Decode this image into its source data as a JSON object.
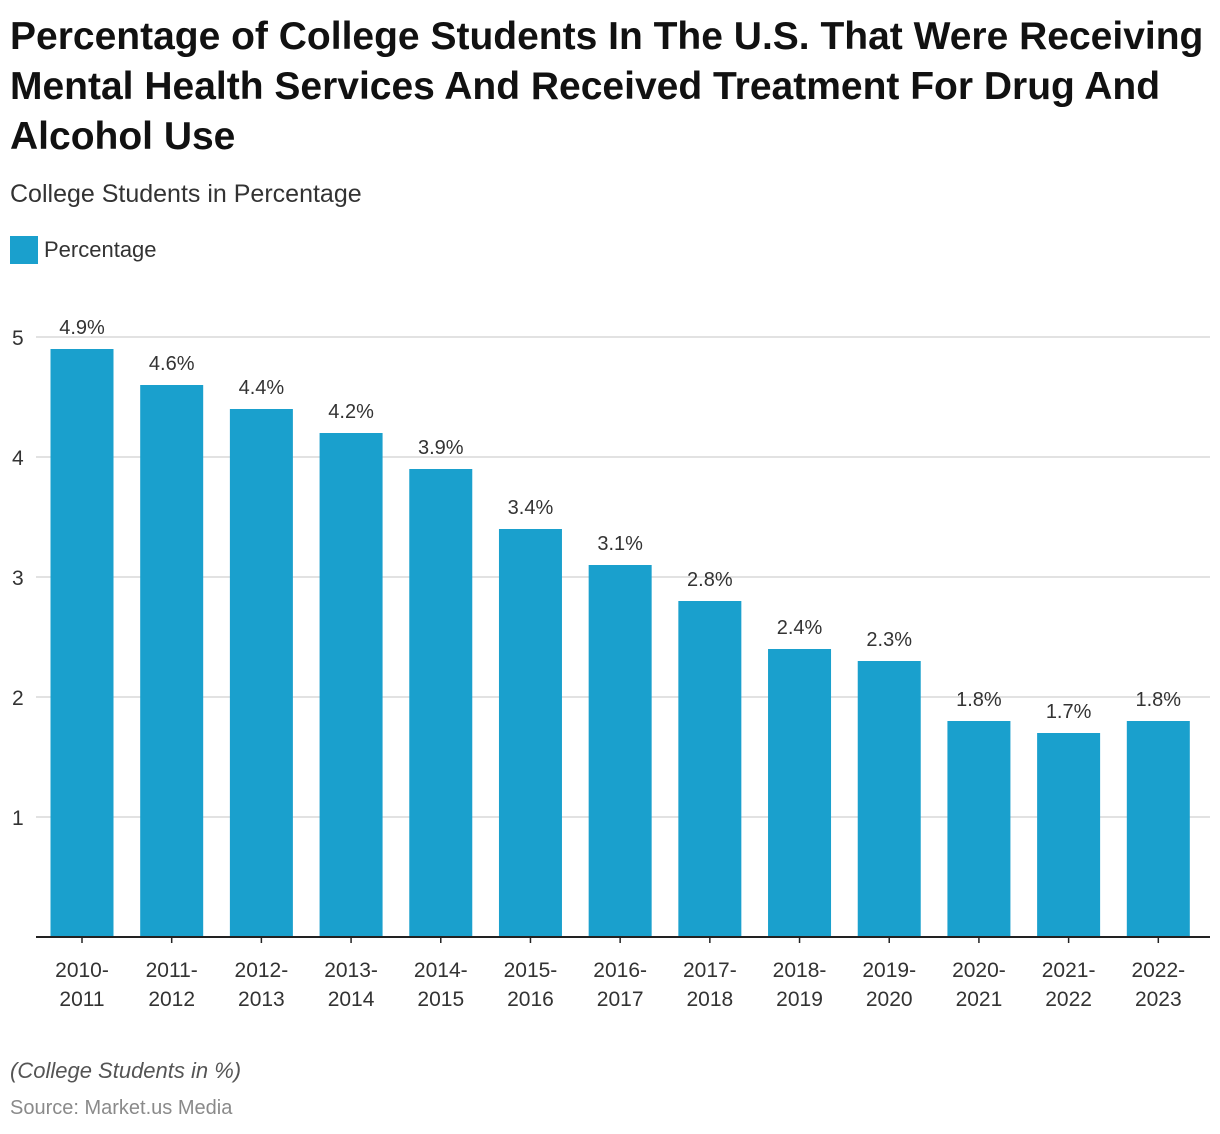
{
  "title": "Percentage of College Students In The U.S. That Were Receiving Mental Health Services And Received Treatment For Drug And Alcohol Use",
  "subtitle": "College Students in Percentage",
  "footnote": "(College Students in %)",
  "source": "Source: Market.us Media",
  "colors": {
    "bar": "#1aa0cd",
    "grid": "#d9d9d9",
    "axis": "#222222",
    "text": "#333333"
  },
  "chart_data": {
    "type": "bar",
    "title": "Percentage of College Students In The U.S. That Were Receiving Mental Health Services And Received Treatment For Drug And Alcohol Use",
    "xlabel": "",
    "ylabel": "",
    "ylim": [
      0,
      5
    ],
    "yticks": [
      1,
      2,
      3,
      4,
      5
    ],
    "grid": true,
    "legend_position": "top-left",
    "categories": [
      [
        "2010-",
        "2011"
      ],
      [
        "2011-",
        "2012"
      ],
      [
        "2012-",
        "2013"
      ],
      [
        "2013-",
        "2014"
      ],
      [
        "2014-",
        "2015"
      ],
      [
        "2015-",
        "2016"
      ],
      [
        "2016-",
        "2017"
      ],
      [
        "2017-",
        "2018"
      ],
      [
        "2018-",
        "2019"
      ],
      [
        "2019-",
        "2020"
      ],
      [
        "2020-",
        "2021"
      ],
      [
        "2021-",
        "2022"
      ],
      [
        "2022-",
        "2023"
      ]
    ],
    "series": [
      {
        "name": "Percentage",
        "values": [
          4.9,
          4.6,
          4.4,
          4.2,
          3.9,
          3.4,
          3.1,
          2.8,
          2.4,
          2.3,
          1.8,
          1.7,
          1.8
        ],
        "labels": [
          "4.9%",
          "4.6%",
          "4.4%",
          "4.2%",
          "3.9%",
          "3.4%",
          "3.1%",
          "2.8%",
          "2.4%",
          "2.3%",
          "1.8%",
          "1.7%",
          "1.8%"
        ]
      }
    ]
  }
}
